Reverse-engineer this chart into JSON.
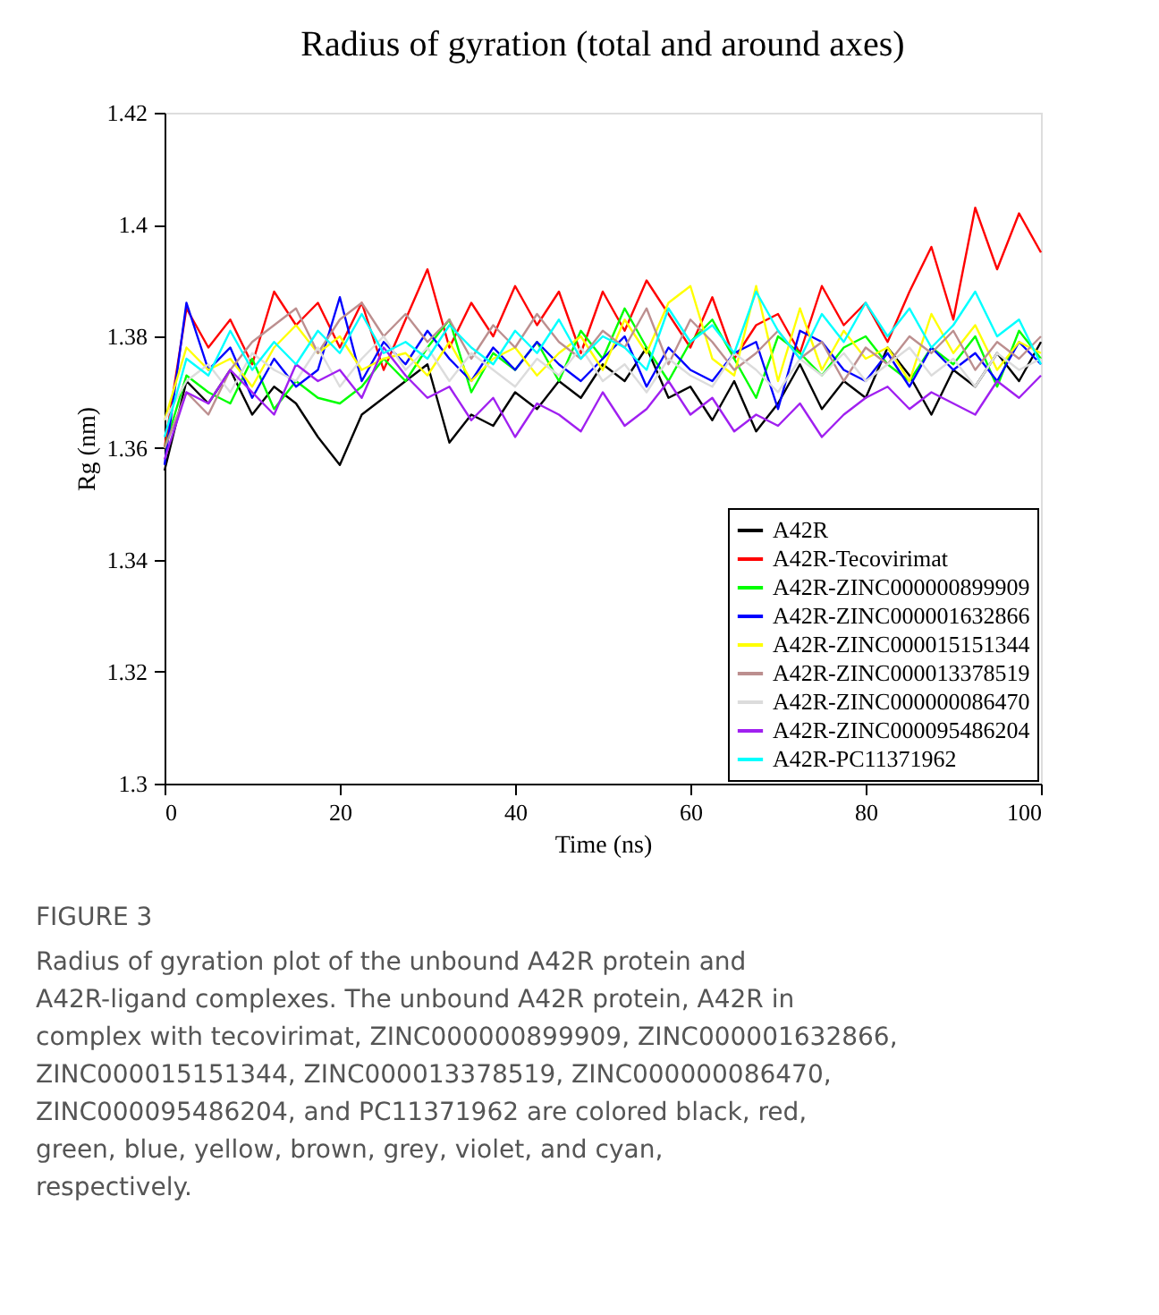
{
  "chart_data": {
    "type": "line",
    "title": "Radius of gyration (total and around axes)",
    "xlabel": "Time (ns)",
    "ylabel": "Rg (nm)",
    "x": [
      0,
      2.5,
      5,
      7.5,
      10,
      12.5,
      15,
      17.5,
      20,
      22.5,
      25,
      27.5,
      30,
      32.5,
      35,
      37.5,
      40,
      42.5,
      45,
      47.5,
      50,
      52.5,
      55,
      57.5,
      60,
      62.5,
      65,
      67.5,
      70,
      72.5,
      75,
      77.5,
      80,
      82.5,
      85,
      87.5,
      90,
      92.5,
      95,
      97.5,
      100
    ],
    "xlim": [
      0,
      100
    ],
    "xticks": [
      0,
      20,
      40,
      60,
      80,
      100
    ],
    "ylim": [
      1.3,
      1.42
    ],
    "yticks": [
      1.3,
      1.32,
      1.34,
      1.36,
      1.38,
      1.4,
      1.42
    ],
    "grid": false,
    "legend": "bottom right",
    "marker": "none",
    "line_style": "solid",
    "series": [
      {
        "name": "A42R",
        "color": "#000000",
        "values": [
          1.356,
          1.372,
          1.368,
          1.374,
          1.366,
          1.371,
          1.368,
          1.362,
          1.357,
          1.366,
          1.369,
          1.372,
          1.375,
          1.361,
          1.366,
          1.364,
          1.37,
          1.367,
          1.372,
          1.369,
          1.375,
          1.372,
          1.378,
          1.369,
          1.371,
          1.365,
          1.372,
          1.363,
          1.368,
          1.375,
          1.367,
          1.372,
          1.369,
          1.378,
          1.373,
          1.366,
          1.374,
          1.371,
          1.377,
          1.372,
          1.379
        ]
      },
      {
        "name": "A42R-Tecovirimat",
        "color": "#ff0000",
        "values": [
          1.36,
          1.385,
          1.378,
          1.383,
          1.375,
          1.388,
          1.382,
          1.386,
          1.378,
          1.386,
          1.374,
          1.383,
          1.392,
          1.378,
          1.386,
          1.38,
          1.389,
          1.382,
          1.388,
          1.377,
          1.388,
          1.381,
          1.39,
          1.384,
          1.378,
          1.387,
          1.376,
          1.382,
          1.384,
          1.377,
          1.389,
          1.382,
          1.386,
          1.379,
          1.388,
          1.396,
          1.383,
          1.403,
          1.392,
          1.402,
          1.395
        ]
      },
      {
        "name": "A42R-ZINC000000899909",
        "color": "#00ff00",
        "values": [
          1.36,
          1.373,
          1.37,
          1.368,
          1.376,
          1.367,
          1.372,
          1.369,
          1.368,
          1.371,
          1.376,
          1.372,
          1.378,
          1.383,
          1.37,
          1.377,
          1.374,
          1.379,
          1.372,
          1.381,
          1.376,
          1.385,
          1.378,
          1.372,
          1.379,
          1.383,
          1.376,
          1.369,
          1.38,
          1.377,
          1.373,
          1.378,
          1.38,
          1.375,
          1.372,
          1.378,
          1.375,
          1.38,
          1.371,
          1.381,
          1.376
        ]
      },
      {
        "name": "A42R-ZINC000001632866",
        "color": "#0000ff",
        "values": [
          1.357,
          1.386,
          1.374,
          1.378,
          1.369,
          1.376,
          1.371,
          1.374,
          1.387,
          1.372,
          1.379,
          1.375,
          1.381,
          1.376,
          1.372,
          1.378,
          1.374,
          1.379,
          1.375,
          1.372,
          1.376,
          1.38,
          1.371,
          1.378,
          1.374,
          1.372,
          1.377,
          1.379,
          1.367,
          1.381,
          1.379,
          1.374,
          1.372,
          1.377,
          1.371,
          1.378,
          1.374,
          1.377,
          1.372,
          1.379,
          1.375
        ]
      },
      {
        "name": "A42R-ZINC000015151344",
        "color": "#ffff00",
        "values": [
          1.365,
          1.378,
          1.374,
          1.376,
          1.371,
          1.378,
          1.382,
          1.377,
          1.38,
          1.374,
          1.376,
          1.377,
          1.373,
          1.379,
          1.372,
          1.376,
          1.378,
          1.373,
          1.377,
          1.38,
          1.374,
          1.383,
          1.377,
          1.386,
          1.389,
          1.376,
          1.373,
          1.389,
          1.372,
          1.385,
          1.374,
          1.381,
          1.376,
          1.378,
          1.372,
          1.384,
          1.377,
          1.382,
          1.374,
          1.379,
          1.377
        ]
      },
      {
        "name": "A42R-ZINC000013378519",
        "color": "#bc8f8f",
        "values": [
          1.36,
          1.37,
          1.366,
          1.374,
          1.379,
          1.382,
          1.385,
          1.377,
          1.383,
          1.386,
          1.38,
          1.384,
          1.379,
          1.383,
          1.376,
          1.382,
          1.378,
          1.384,
          1.379,
          1.376,
          1.381,
          1.378,
          1.385,
          1.375,
          1.383,
          1.379,
          1.374,
          1.377,
          1.381,
          1.376,
          1.379,
          1.372,
          1.378,
          1.375,
          1.38,
          1.377,
          1.381,
          1.374,
          1.379,
          1.376,
          1.38
        ]
      },
      {
        "name": "A42R-ZINC000000086470",
        "color": "#dcdcdc",
        "values": [
          1.365,
          1.372,
          1.375,
          1.37,
          1.377,
          1.374,
          1.372,
          1.378,
          1.371,
          1.376,
          1.38,
          1.374,
          1.378,
          1.372,
          1.377,
          1.374,
          1.371,
          1.376,
          1.373,
          1.378,
          1.372,
          1.375,
          1.37,
          1.376,
          1.373,
          1.371,
          1.377,
          1.374,
          1.37,
          1.376,
          1.373,
          1.377,
          1.372,
          1.375,
          1.378,
          1.373,
          1.376,
          1.371,
          1.377,
          1.374,
          1.376
        ]
      },
      {
        "name": "A42R-ZINC000095486204",
        "color": "#a020f0",
        "values": [
          1.358,
          1.37,
          1.368,
          1.374,
          1.37,
          1.366,
          1.375,
          1.372,
          1.374,
          1.369,
          1.378,
          1.373,
          1.369,
          1.371,
          1.365,
          1.369,
          1.362,
          1.368,
          1.366,
          1.363,
          1.37,
          1.364,
          1.367,
          1.372,
          1.366,
          1.369,
          1.363,
          1.366,
          1.364,
          1.368,
          1.362,
          1.366,
          1.369,
          1.371,
          1.367,
          1.37,
          1.368,
          1.366,
          1.372,
          1.369,
          1.373
        ]
      },
      {
        "name": "A42R-PC11371962",
        "color": "#00ffff",
        "values": [
          1.362,
          1.376,
          1.373,
          1.381,
          1.374,
          1.379,
          1.375,
          1.381,
          1.377,
          1.384,
          1.377,
          1.379,
          1.376,
          1.382,
          1.378,
          1.375,
          1.381,
          1.377,
          1.383,
          1.376,
          1.38,
          1.378,
          1.374,
          1.385,
          1.379,
          1.382,
          1.377,
          1.388,
          1.381,
          1.376,
          1.384,
          1.379,
          1.386,
          1.38,
          1.385,
          1.378,
          1.382,
          1.388,
          1.38,
          1.383,
          1.375
        ]
      }
    ],
    "annotations": [
      "FIGURE 3",
      "Radius of gyration plot of the unbound A42R protein and A42R-ligand complexes. The unbound A42R protein, A42R in complex with tecovirimat, ZINC000000899909, ZINC000001632866, ZINC000015151344, ZINC000013378519, ZINC000000086470, ZINC000095486204, and PC11371962 are colored black, red, green, blue, yellow, brown, grey, violet, and cyan, respectively."
    ]
  }
}
